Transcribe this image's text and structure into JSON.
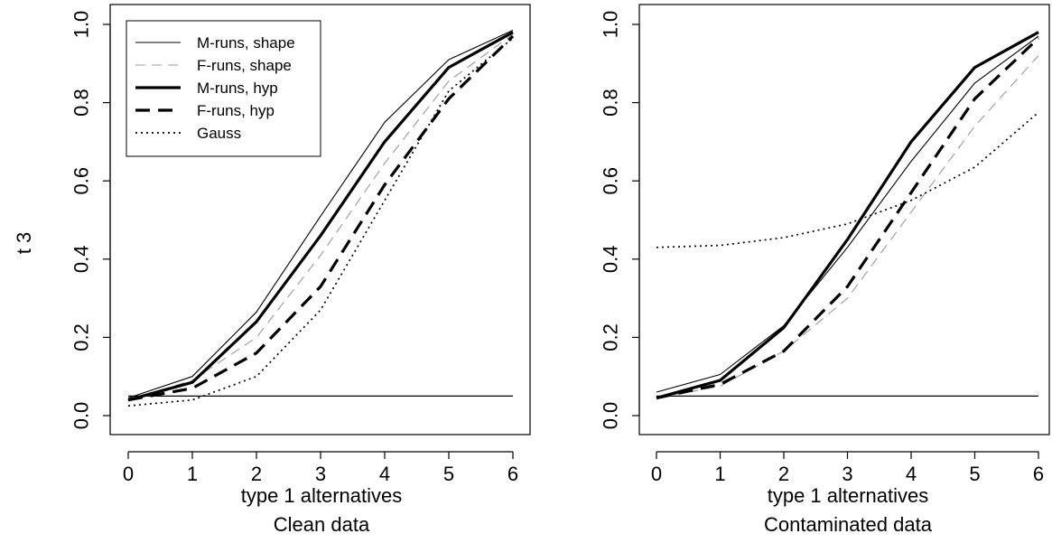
{
  "figure": {
    "shared_ylabel": "t 3"
  },
  "chart_data": [
    {
      "type": "line",
      "xlabel": "type 1 alternatives",
      "subtitle": "Clean data",
      "x": [
        0,
        1,
        2,
        3,
        4,
        5,
        6
      ],
      "xlim": [
        0,
        6
      ],
      "ylim": [
        0,
        1
      ],
      "xticks": [
        "0",
        "1",
        "2",
        "3",
        "4",
        "5",
        "6"
      ],
      "yticks": [
        "0.0",
        "0.2",
        "0.4",
        "0.6",
        "0.8",
        "1.0"
      ],
      "grid": false,
      "legend": "top-left",
      "reference_line": 0.05,
      "series": [
        {
          "name": "M-runs, shape",
          "style": "thin-solid",
          "color": "#000000",
          "values": [
            0.045,
            0.1,
            0.265,
            0.51,
            0.75,
            0.91,
            0.985
          ]
        },
        {
          "name": "F-runs, shape",
          "style": "thin-dash-grey",
          "color": "#999999",
          "values": [
            0.04,
            0.09,
            0.2,
            0.41,
            0.645,
            0.855,
            0.975
          ]
        },
        {
          "name": "M-runs, hyp",
          "style": "thick-solid",
          "color": "#000000",
          "values": [
            0.04,
            0.085,
            0.24,
            0.46,
            0.7,
            0.89,
            0.98
          ]
        },
        {
          "name": "F-runs, hyp",
          "style": "thick-dash",
          "color": "#000000",
          "values": [
            0.04,
            0.07,
            0.16,
            0.33,
            0.59,
            0.81,
            0.97
          ]
        },
        {
          "name": "Gauss",
          "style": "dotted",
          "color": "#000000",
          "values": [
            0.025,
            0.04,
            0.1,
            0.27,
            0.55,
            0.83,
            0.965
          ]
        }
      ]
    },
    {
      "type": "line",
      "xlabel": "type 1 alternatives",
      "subtitle": "Contaminated data",
      "x": [
        0,
        1,
        2,
        3,
        4,
        5,
        6
      ],
      "xlim": [
        0,
        6
      ],
      "ylim": [
        0,
        1
      ],
      "xticks": [
        "0",
        "1",
        "2",
        "3",
        "4",
        "5",
        "6"
      ],
      "yticks": [
        "0.0",
        "0.2",
        "0.4",
        "0.6",
        "0.8",
        "1.0"
      ],
      "grid": false,
      "reference_line": 0.05,
      "series": [
        {
          "name": "M-runs, shape",
          "style": "thin-solid",
          "color": "#000000",
          "values": [
            0.06,
            0.105,
            0.23,
            0.43,
            0.65,
            0.85,
            0.97
          ]
        },
        {
          "name": "F-runs, shape",
          "style": "thin-dash-grey",
          "color": "#999999",
          "values": [
            0.045,
            0.075,
            0.165,
            0.3,
            0.52,
            0.74,
            0.92
          ]
        },
        {
          "name": "M-runs, hyp",
          "style": "thick-solid",
          "color": "#000000",
          "values": [
            0.045,
            0.09,
            0.225,
            0.45,
            0.7,
            0.89,
            0.98
          ]
        },
        {
          "name": "F-runs, hyp",
          "style": "thick-dash",
          "color": "#000000",
          "values": [
            0.045,
            0.08,
            0.165,
            0.33,
            0.57,
            0.81,
            0.965
          ]
        },
        {
          "name": "Gauss",
          "style": "dotted",
          "color": "#000000",
          "values": [
            0.43,
            0.435,
            0.455,
            0.49,
            0.55,
            0.635,
            0.775
          ]
        }
      ]
    }
  ]
}
